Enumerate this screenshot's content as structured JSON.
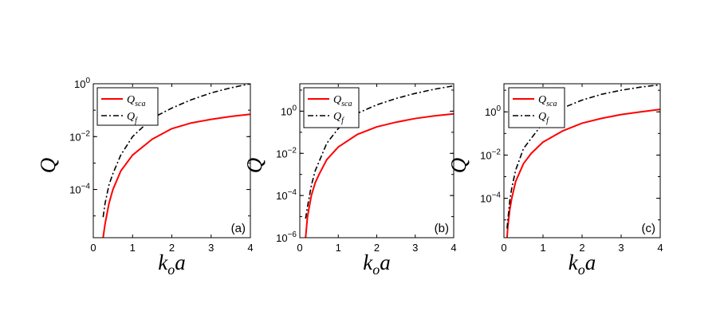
{
  "chart_data": [
    {
      "type": "line",
      "panel_label": "(a)",
      "xlabel": "k_o a",
      "ylabel": "Q",
      "xlim": [
        0,
        4
      ],
      "ylim": [
        1.5e-06,
        1
      ],
      "yscale": "log",
      "xticks": [
        0,
        1,
        2,
        3,
        4
      ],
      "yticks": [
        {
          "value": 0.0001,
          "exp": "−4"
        },
        {
          "value": 0.01,
          "exp": "−2"
        },
        {
          "value": 1,
          "exp": "0"
        }
      ],
      "legend_position": "top-left",
      "series": [
        {
          "name": "Q_sca",
          "color": "#ff0000",
          "dash": "solid",
          "x": [
            0.25,
            0.3,
            0.4,
            0.5,
            0.7,
            1.0,
            1.5,
            2.0,
            2.5,
            3.0,
            3.5,
            4.0
          ],
          "y": [
            1.5e-06,
            5e-06,
            3e-05,
            0.0001,
            0.0005,
            0.002,
            0.008,
            0.02,
            0.033,
            0.045,
            0.058,
            0.07
          ]
        },
        {
          "name": "Q_f",
          "color": "#000000",
          "dash": "dashdot",
          "x": [
            0.25,
            0.3,
            0.4,
            0.5,
            0.7,
            1.0,
            1.5,
            2.0,
            2.5,
            3.0,
            3.5,
            4.0
          ],
          "y": [
            9e-06,
            3e-05,
            0.00015,
            0.0004,
            0.002,
            0.01,
            0.05,
            0.12,
            0.25,
            0.45,
            0.7,
            1.0
          ]
        }
      ]
    },
    {
      "type": "line",
      "panel_label": "(b)",
      "xlabel": "k_o a",
      "ylabel": "Q",
      "xlim": [
        0,
        4
      ],
      "ylim": [
        1e-06,
        20
      ],
      "yscale": "log",
      "xticks": [
        0,
        1,
        2,
        3,
        4
      ],
      "yticks": [
        {
          "value": 1e-06,
          "exp": "−6"
        },
        {
          "value": 0.0001,
          "exp": "−4"
        },
        {
          "value": 0.01,
          "exp": "−2"
        },
        {
          "value": 1,
          "exp": "0"
        }
      ],
      "legend_position": "top-left",
      "series": [
        {
          "name": "Q_sca",
          "color": "#ff0000",
          "dash": "solid",
          "x": [
            0.15,
            0.2,
            0.3,
            0.4,
            0.5,
            0.7,
            1.0,
            1.5,
            2.0,
            2.5,
            3.0,
            3.5,
            4.0
          ],
          "y": [
            1e-06,
            1e-05,
            0.0001,
            0.0004,
            0.001,
            0.005,
            0.02,
            0.08,
            0.18,
            0.3,
            0.45,
            0.6,
            0.75
          ]
        },
        {
          "name": "Q_f",
          "color": "#000000",
          "dash": "dashdot",
          "x": [
            0.15,
            0.2,
            0.3,
            0.4,
            0.5,
            0.7,
            1.0,
            1.5,
            2.0,
            2.5,
            3.0,
            3.5,
            4.0
          ],
          "y": [
            8e-06,
            3e-05,
            0.0003,
            0.0015,
            0.004,
            0.03,
            0.15,
            0.8,
            2.0,
            4.0,
            7.0,
            11.0,
            16.0
          ]
        }
      ]
    },
    {
      "type": "line",
      "panel_label": "(c)",
      "xlabel": "k_o a",
      "ylabel": "Q",
      "xlim": [
        0,
        4
      ],
      "ylim": [
        1.5e-06,
        20
      ],
      "yscale": "log",
      "xticks": [
        0,
        1,
        2,
        3,
        4
      ],
      "yticks": [
        {
          "value": 0.0001,
          "exp": "−4"
        },
        {
          "value": 0.01,
          "exp": "−2"
        },
        {
          "value": 1,
          "exp": "0"
        }
      ],
      "legend_position": "top-left",
      "series": [
        {
          "name": "Q_sca",
          "color": "#ff0000",
          "dash": "solid",
          "x": [
            0.08,
            0.1,
            0.15,
            0.2,
            0.3,
            0.5,
            0.7,
            1.0,
            1.5,
            2.0,
            2.5,
            3.0,
            3.5,
            4.0
          ],
          "y": [
            1.5e-06,
            5e-06,
            3e-05,
            0.0001,
            0.0006,
            0.004,
            0.012,
            0.04,
            0.13,
            0.3,
            0.5,
            0.75,
            1.0,
            1.3
          ]
        },
        {
          "name": "Q_f",
          "color": "#000000",
          "dash": "dashdot",
          "x": [
            0.08,
            0.1,
            0.15,
            0.2,
            0.3,
            0.5,
            0.7,
            1.0,
            1.5,
            2.0,
            2.5,
            3.0,
            3.5,
            4.0
          ],
          "y": [
            4e-06,
            1e-05,
            8e-05,
            0.0003,
            0.002,
            0.02,
            0.06,
            0.3,
            1.5,
            3.5,
            6.5,
            10.0,
            14.0,
            18.0
          ]
        }
      ]
    }
  ]
}
